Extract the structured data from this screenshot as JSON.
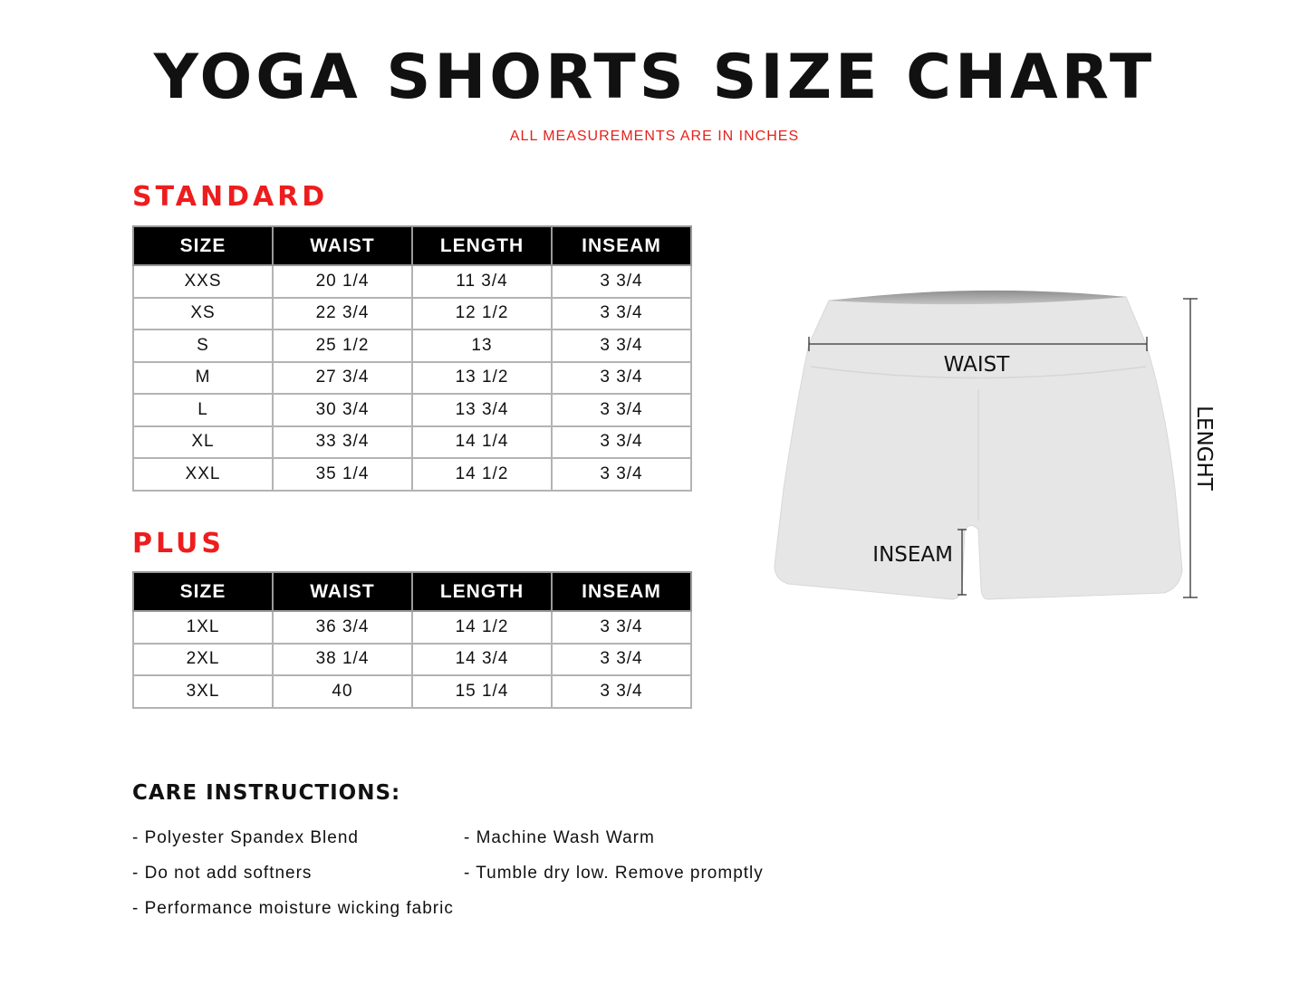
{
  "title": "YOGA SHORTS SIZE CHART",
  "subtitle": "ALL MEASUREMENTS ARE IN INCHES",
  "colors": {
    "accent": "#ee1d1d",
    "header_bg": "#000000",
    "garment": "#e6e6e6"
  },
  "standard": {
    "heading": "STANDARD",
    "columns": [
      "SIZE",
      "WAIST",
      "LENGTH",
      "INSEAM"
    ],
    "rows": [
      [
        "XXS",
        "20 1/4",
        "11 3/4",
        "3 3/4"
      ],
      [
        "XS",
        "22 3/4",
        "12 1/2",
        "3 3/4"
      ],
      [
        "S",
        "25 1/2",
        "13",
        "3 3/4"
      ],
      [
        "M",
        "27 3/4",
        "13 1/2",
        "3 3/4"
      ],
      [
        "L",
        "30 3/4",
        "13 3/4",
        "3 3/4"
      ],
      [
        "XL",
        "33 3/4",
        "14 1/4",
        "3 3/4"
      ],
      [
        "XXL",
        "35 1/4",
        "14 1/2",
        "3 3/4"
      ]
    ]
  },
  "plus": {
    "heading": "PLUS",
    "columns": [
      "SIZE",
      "WAIST",
      "LENGTH",
      "INSEAM"
    ],
    "rows": [
      [
        "1XL",
        "36 3/4",
        "14 1/2",
        "3 3/4"
      ],
      [
        "2XL",
        "38 1/4",
        "14 3/4",
        "3 3/4"
      ],
      [
        "3XL",
        "40",
        "15 1/4",
        "3 3/4"
      ]
    ]
  },
  "diagram": {
    "waist_label": "WAIST",
    "length_label": "LENGHT",
    "inseam_label": "INSEAM"
  },
  "care": {
    "title": "CARE INSTRUCTIONS:",
    "items": [
      "- Polyester Spandex Blend",
      "- Machine Wash Warm",
      "- Do not add softners",
      "- Tumble dry low. Remove promptly",
      "- Performance moisture wicking fabric"
    ]
  }
}
